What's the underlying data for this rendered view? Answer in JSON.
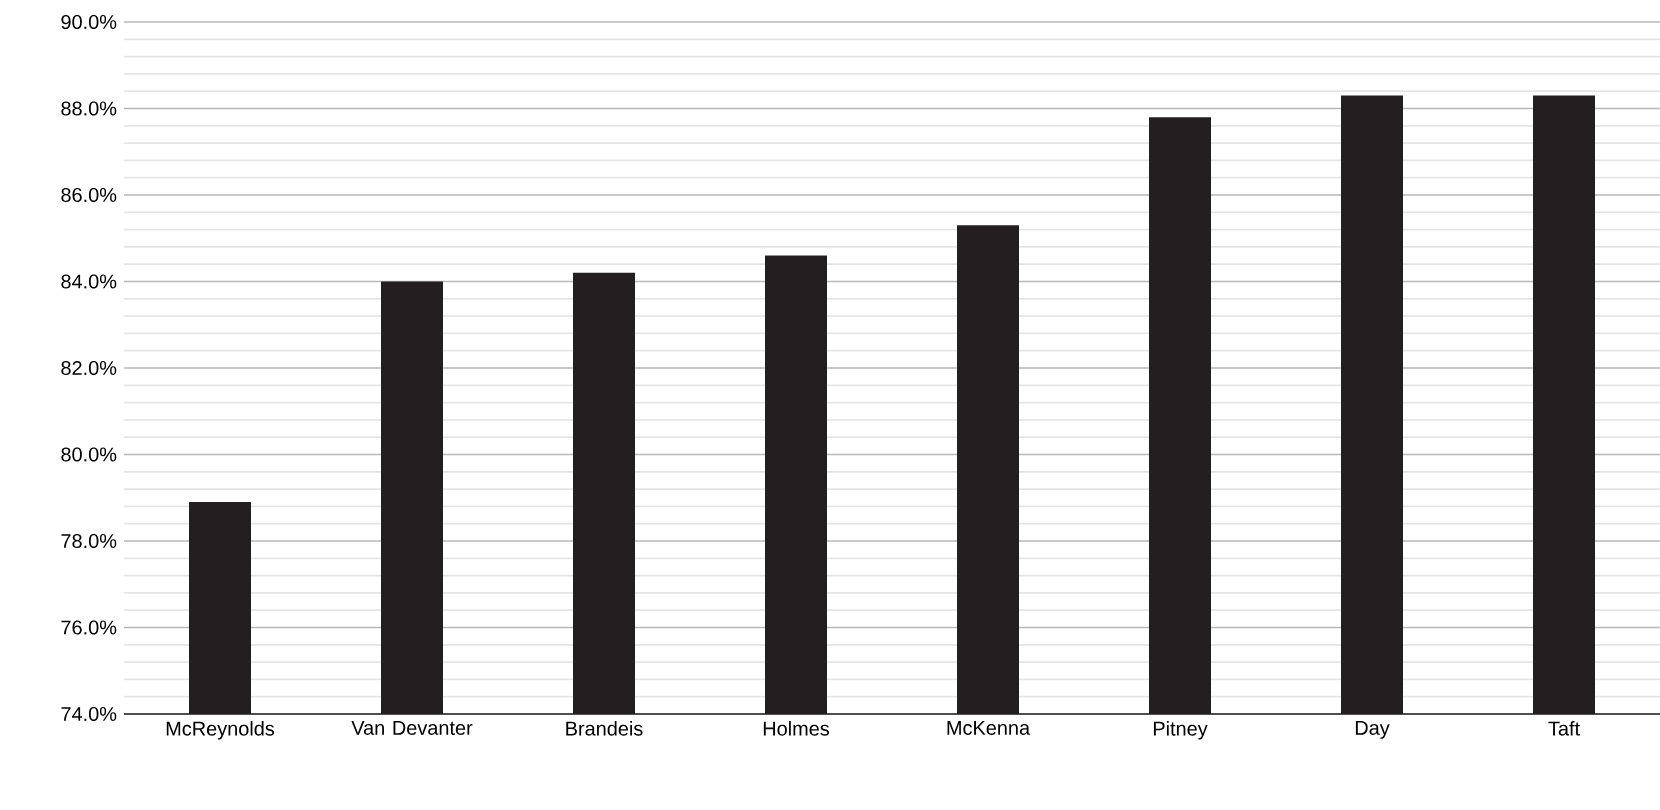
{
  "chart_data": {
    "type": "bar",
    "categories": [
      "McReynolds",
      "Van Devanter",
      "Brandeis",
      "Holmes",
      "McKenna",
      "Pitney",
      "Day",
      "Taft"
    ],
    "values": [
      78.9,
      84.0,
      84.2,
      84.6,
      85.3,
      87.8,
      88.3,
      88.3
    ],
    "color": "#231f20",
    "ylim": [
      74,
      90
    ],
    "yticks": [
      {
        "value": 74,
        "label": "74.0%"
      },
      {
        "value": 76,
        "label": "76.0%"
      },
      {
        "value": 78,
        "label": "78.0%"
      },
      {
        "value": 80,
        "label": "80.0%"
      },
      {
        "value": 82,
        "label": "82.0%"
      },
      {
        "value": 84,
        "label": "84.0%"
      },
      {
        "value": 86,
        "label": "86.0%"
      },
      {
        "value": 88,
        "label": "88.0%"
      },
      {
        "value": 90,
        "label": "90.0%"
      }
    ],
    "grid": "y"
  }
}
